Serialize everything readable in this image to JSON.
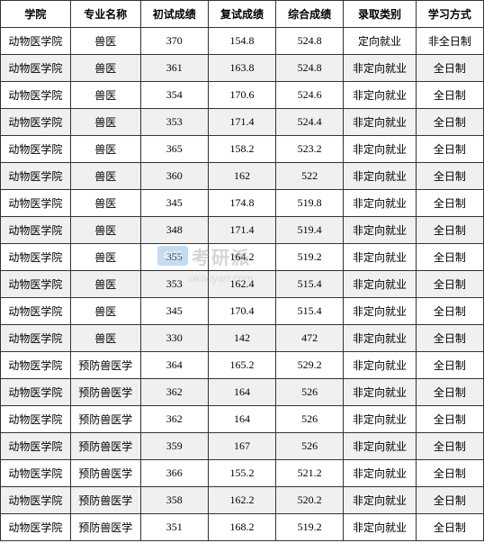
{
  "table": {
    "columns": [
      "学院",
      "专业名称",
      "初试成绩",
      "复试成绩",
      "综合成绩",
      "录取类别",
      "学习方式"
    ],
    "column_widths_pct": [
      14.5,
      14.5,
      14,
      14,
      14,
      15,
      14
    ],
    "header_bg": "#ffffff",
    "row_bg_odd": "#ffffff",
    "row_bg_even": "#f0f0f0",
    "border_color": "#333333",
    "text_color": "#000000",
    "font_size_pt": 9,
    "rows": [
      [
        "动物医学院",
        "兽医",
        "370",
        "154.8",
        "524.8",
        "定向就业",
        "非全日制"
      ],
      [
        "动物医学院",
        "兽医",
        "361",
        "163.8",
        "524.8",
        "非定向就业",
        "全日制"
      ],
      [
        "动物医学院",
        "兽医",
        "354",
        "170.6",
        "524.6",
        "非定向就业",
        "全日制"
      ],
      [
        "动物医学院",
        "兽医",
        "353",
        "171.4",
        "524.4",
        "非定向就业",
        "全日制"
      ],
      [
        "动物医学院",
        "兽医",
        "365",
        "158.2",
        "523.2",
        "非定向就业",
        "全日制"
      ],
      [
        "动物医学院",
        "兽医",
        "360",
        "162",
        "522",
        "非定向就业",
        "全日制"
      ],
      [
        "动物医学院",
        "兽医",
        "345",
        "174.8",
        "519.8",
        "非定向就业",
        "全日制"
      ],
      [
        "动物医学院",
        "兽医",
        "348",
        "171.4",
        "519.4",
        "非定向就业",
        "全日制"
      ],
      [
        "动物医学院",
        "兽医",
        "355",
        "164.2",
        "519.2",
        "非定向就业",
        "全日制"
      ],
      [
        "动物医学院",
        "兽医",
        "353",
        "162.4",
        "515.4",
        "非定向就业",
        "全日制"
      ],
      [
        "动物医学院",
        "兽医",
        "345",
        "170.4",
        "515.4",
        "非定向就业",
        "全日制"
      ],
      [
        "动物医学院",
        "兽医",
        "330",
        "142",
        "472",
        "非定向就业",
        "全日制"
      ],
      [
        "动物医学院",
        "预防兽医学",
        "364",
        "165.2",
        "529.2",
        "非定向就业",
        "全日制"
      ],
      [
        "动物医学院",
        "预防兽医学",
        "362",
        "164",
        "526",
        "非定向就业",
        "全日制"
      ],
      [
        "动物医学院",
        "预防兽医学",
        "362",
        "164",
        "526",
        "非定向就业",
        "全日制"
      ],
      [
        "动物医学院",
        "预防兽医学",
        "359",
        "167",
        "526",
        "非定向就业",
        "全日制"
      ],
      [
        "动物医学院",
        "预防兽医学",
        "366",
        "155.2",
        "521.2",
        "非定向就业",
        "全日制"
      ],
      [
        "动物医学院",
        "预防兽医学",
        "358",
        "162.2",
        "520.2",
        "非定向就业",
        "全日制"
      ],
      [
        "动物医学院",
        "预防兽医学",
        "351",
        "168.2",
        "519.2",
        "非定向就业",
        "全日制"
      ]
    ]
  },
  "watermark": {
    "badge_text": "考研",
    "badge_bg": "#5b9bd5",
    "badge_color": "#ffffff",
    "brand_text": "考研派",
    "brand_color": "#888888",
    "url_text": "okaoyan.com",
    "url_color": "#aaaaaa",
    "opacity": 0.35
  }
}
